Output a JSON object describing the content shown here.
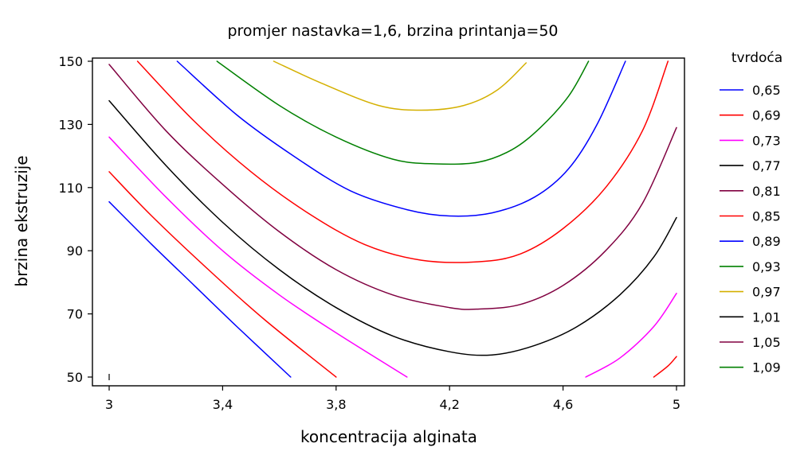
{
  "chart_data": {
    "type": "contour",
    "title": "promjer nastavka=1,6, brzina printanja=50",
    "xlabel": "koncentracija alginata",
    "ylabel": "brzina ekstruzije",
    "xlim": [
      3,
      5
    ],
    "ylim": [
      50,
      150
    ],
    "x_ticks": [
      {
        "value": 3.0,
        "label": "3"
      },
      {
        "value": 3.4,
        "label": "3,4"
      },
      {
        "value": 3.8,
        "label": "3,8"
      },
      {
        "value": 4.2,
        "label": "4,2"
      },
      {
        "value": 4.6,
        "label": "4,6"
      },
      {
        "value": 5.0,
        "label": "5"
      }
    ],
    "y_ticks": [
      {
        "value": 50,
        "label": "50"
      },
      {
        "value": 70,
        "label": "70"
      },
      {
        "value": 90,
        "label": "90"
      },
      {
        "value": 110,
        "label": "110"
      },
      {
        "value": 130,
        "label": "130"
      },
      {
        "value": 150,
        "label": "150"
      }
    ],
    "legend": {
      "title": "tvrdoća",
      "placement": "right",
      "entries": [
        {
          "label": "0,65",
          "color": "#0000ff"
        },
        {
          "label": "0,69",
          "color": "#ff0000"
        },
        {
          "label": "0,73",
          "color": "#ff00ff"
        },
        {
          "label": "0,77",
          "color": "#000000"
        },
        {
          "label": "0,81",
          "color": "#800040"
        },
        {
          "label": "0,85",
          "color": "#ff0000"
        },
        {
          "label": "0,89",
          "color": "#0000ff"
        },
        {
          "label": "0,93",
          "color": "#008000"
        },
        {
          "label": "0,97",
          "color": "#d4b000"
        },
        {
          "label": "1,01",
          "color": "#000000"
        },
        {
          "label": "1,05",
          "color": "#800040"
        },
        {
          "label": "1,09",
          "color": "#008000"
        }
      ]
    },
    "series": [
      {
        "name": "0,65",
        "color": "#0000ff",
        "segments": [
          [
            [
              3.0,
              105.5
            ],
            [
              3.15,
              92
            ],
            [
              3.3,
              79
            ],
            [
              3.45,
              66
            ],
            [
              3.64,
              50
            ]
          ]
        ]
      },
      {
        "name": "0,69",
        "color": "#ff0000",
        "segments": [
          [
            [
              3.0,
              115
            ],
            [
              3.15,
              101
            ],
            [
              3.35,
              84
            ],
            [
              3.55,
              68
            ],
            [
              3.8,
              50
            ]
          ]
        ]
      },
      {
        "name": "0,73",
        "color": "#ff00ff",
        "segments": [
          [
            [
              3.0,
              126
            ],
            [
              3.2,
              107
            ],
            [
              3.4,
              90
            ],
            [
              3.6,
              76
            ],
            [
              3.8,
              64
            ],
            [
              4.05,
              50
            ]
          ],
          [
            [
              4.68,
              50
            ],
            [
              4.8,
              56
            ],
            [
              4.92,
              66
            ],
            [
              5.0,
              76.5
            ]
          ]
        ]
      },
      {
        "name": "0,77",
        "color": "#000000",
        "segments": [
          [
            [
              3.0,
              137.5
            ],
            [
              3.2,
              117
            ],
            [
              3.4,
              99
            ],
            [
              3.6,
              84
            ],
            [
              3.8,
              72
            ],
            [
              4.0,
              63
            ],
            [
              4.2,
              58
            ],
            [
              4.35,
              57
            ],
            [
              4.5,
              60
            ],
            [
              4.65,
              66
            ],
            [
              4.8,
              76
            ],
            [
              4.92,
              88
            ],
            [
              5.0,
              100.5
            ]
          ]
        ]
      },
      {
        "name": "0,81",
        "color": "#800040",
        "segments": [
          [
            [
              3.0,
              149
            ],
            [
              3.2,
              128
            ],
            [
              3.4,
              111
            ],
            [
              3.6,
              96
            ],
            [
              3.8,
              84
            ],
            [
              4.0,
              76
            ],
            [
              4.2,
              72
            ],
            [
              4.3,
              71.5
            ],
            [
              4.45,
              73
            ],
            [
              4.6,
              79
            ],
            [
              4.75,
              90
            ],
            [
              4.88,
              105
            ],
            [
              5.0,
              129
            ]
          ]
        ]
      },
      {
        "name": "0,85",
        "color": "#ff0000",
        "segments": [
          [
            [
              3.1,
              150
            ],
            [
              3.3,
              131
            ],
            [
              3.5,
              115
            ],
            [
              3.7,
              102
            ],
            [
              3.9,
              92
            ],
            [
              4.1,
              87
            ],
            [
              4.3,
              86.5
            ],
            [
              4.45,
              89
            ],
            [
              4.6,
              97
            ],
            [
              4.75,
              110
            ],
            [
              4.88,
              128
            ],
            [
              4.97,
              150
            ]
          ],
          [
            [
              4.92,
              50
            ],
            [
              4.97,
              53.5
            ],
            [
              5.0,
              56.5
            ]
          ]
        ]
      },
      {
        "name": "0,89",
        "color": "#0000ff",
        "segments": [
          [
            [
              3.24,
              150
            ],
            [
              3.45,
              133
            ],
            [
              3.65,
              120
            ],
            [
              3.85,
              109
            ],
            [
              4.05,
              103
            ],
            [
              4.2,
              101
            ],
            [
              4.35,
              102
            ],
            [
              4.5,
              107
            ],
            [
              4.62,
              116
            ],
            [
              4.72,
              130
            ],
            [
              4.82,
              150
            ]
          ]
        ]
      },
      {
        "name": "0,93",
        "color": "#008000",
        "segments": [
          [
            [
              3.38,
              150
            ],
            [
              3.6,
              136
            ],
            [
              3.8,
              126
            ],
            [
              4.0,
              119
            ],
            [
              4.15,
              117.5
            ],
            [
              4.3,
              118
            ],
            [
              4.42,
              122
            ],
            [
              4.52,
              129
            ],
            [
              4.62,
              139
            ],
            [
              4.69,
              150
            ]
          ]
        ]
      },
      {
        "name": "0,97",
        "color": "#d4b000",
        "segments": [
          [
            [
              3.58,
              150
            ],
            [
              3.75,
              143
            ],
            [
              3.95,
              136
            ],
            [
              4.1,
              134.5
            ],
            [
              4.25,
              136
            ],
            [
              4.37,
              141
            ],
            [
              4.47,
              149.5
            ]
          ]
        ]
      }
    ]
  }
}
